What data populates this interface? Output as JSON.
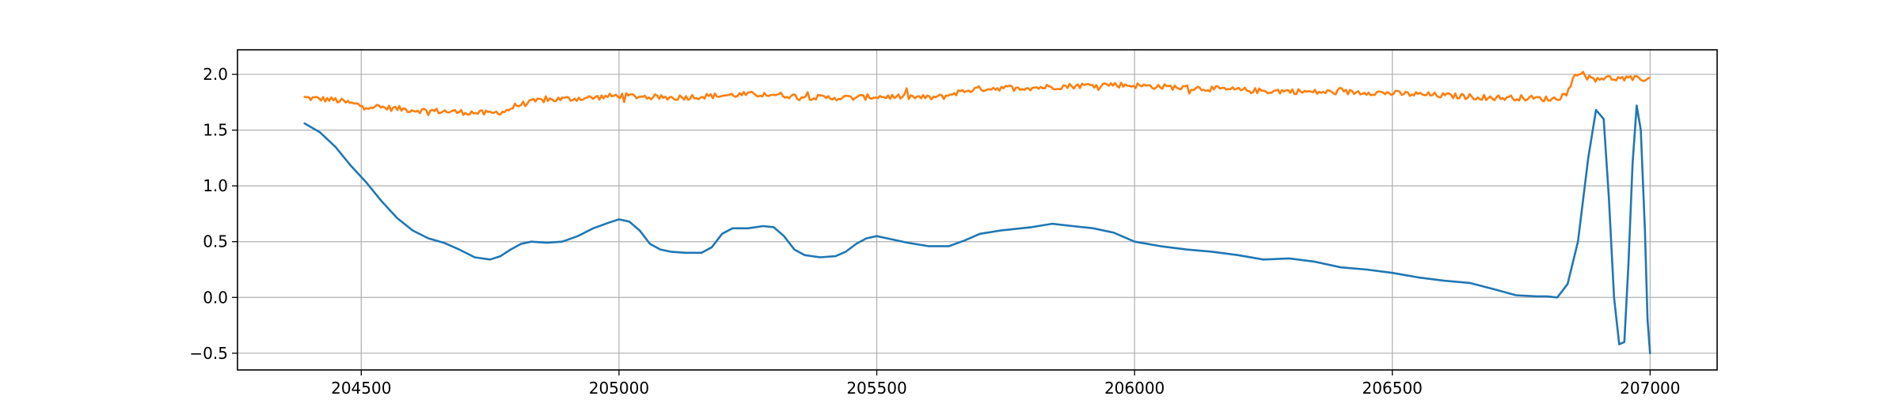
{
  "chart_data": {
    "type": "line",
    "title": "",
    "xlabel": "",
    "ylabel": "",
    "xlim": [
      204260,
      207130
    ],
    "ylim": [
      -0.65,
      2.22
    ],
    "grid": true,
    "legend": "none",
    "x_ticks": [
      204500,
      205000,
      205500,
      206000,
      206500,
      207000
    ],
    "x_tick_labels": [
      "204500",
      "205000",
      "205500",
      "206000",
      "206500",
      "207000"
    ],
    "y_ticks": [
      -0.5,
      0.0,
      0.5,
      1.0,
      1.5,
      2.0
    ],
    "y_tick_labels": [
      "−0.5",
      "0.0",
      "0.5",
      "1.0",
      "1.5",
      "2.0"
    ],
    "series": [
      {
        "color": "#1f77b4",
        "x": [
          204390,
          204420,
          204450,
          204480,
          204510,
          204540,
          204570,
          204600,
          204630,
          204660,
          204690,
          204720,
          204750,
          204770,
          204790,
          204810,
          204830,
          204860,
          204890,
          204920,
          204950,
          204980,
          205000,
          205020,
          205040,
          205060,
          205080,
          205100,
          205130,
          205160,
          205180,
          205200,
          205220,
          205250,
          205280,
          205300,
          205320,
          205340,
          205360,
          205390,
          205420,
          205440,
          205460,
          205480,
          205500,
          205520,
          205560,
          205600,
          205640,
          205670,
          205700,
          205740,
          205780,
          205800,
          205840,
          205880,
          205920,
          205960,
          206000,
          206050,
          206100,
          206150,
          206200,
          206250,
          206300,
          206350,
          206400,
          206450,
          206500,
          206550,
          206600,
          206650,
          206700,
          206740,
          206780,
          206800,
          206820,
          206840,
          206860,
          206880,
          206895,
          206910,
          206920,
          206930,
          206940,
          206950,
          206958,
          206966,
          206974,
          206982,
          206990,
          206995,
          207000
        ],
        "y": [
          1.56,
          1.48,
          1.35,
          1.18,
          1.03,
          0.86,
          0.71,
          0.6,
          0.53,
          0.49,
          0.43,
          0.36,
          0.34,
          0.37,
          0.43,
          0.48,
          0.5,
          0.49,
          0.5,
          0.55,
          0.62,
          0.67,
          0.7,
          0.68,
          0.6,
          0.48,
          0.43,
          0.41,
          0.4,
          0.4,
          0.45,
          0.57,
          0.62,
          0.62,
          0.64,
          0.63,
          0.55,
          0.43,
          0.38,
          0.36,
          0.37,
          0.41,
          0.48,
          0.53,
          0.55,
          0.53,
          0.49,
          0.46,
          0.46,
          0.51,
          0.57,
          0.6,
          0.62,
          0.63,
          0.66,
          0.64,
          0.62,
          0.58,
          0.5,
          0.46,
          0.43,
          0.41,
          0.38,
          0.34,
          0.35,
          0.32,
          0.27,
          0.25,
          0.22,
          0.18,
          0.15,
          0.13,
          0.07,
          0.02,
          0.01,
          0.01,
          0.0,
          0.12,
          0.5,
          1.25,
          1.68,
          1.6,
          0.9,
          0.0,
          -0.42,
          -0.4,
          0.3,
          1.2,
          1.72,
          1.5,
          0.6,
          -0.2,
          -0.5
        ]
      },
      {
        "color": "#ff7f0e",
        "x": [
          204390,
          204450,
          204500,
          204550,
          204600,
          204650,
          204700,
          204750,
          204780,
          204800,
          204830,
          204850,
          204900,
          204950,
          205000,
          205050,
          205100,
          205150,
          205200,
          205250,
          205300,
          205350,
          205400,
          205450,
          205500,
          205550,
          205600,
          205630,
          205650,
          205680,
          205700,
          205750,
          205800,
          205850,
          205900,
          205950,
          206000,
          206050,
          206100,
          206150,
          206200,
          206250,
          206300,
          206350,
          206400,
          206450,
          206500,
          206550,
          206600,
          206650,
          206700,
          206750,
          206800,
          206820,
          206840,
          206850,
          206860,
          206870,
          206880,
          206900,
          206950,
          207000
        ],
        "y": [
          1.79,
          1.77,
          1.72,
          1.7,
          1.68,
          1.67,
          1.66,
          1.65,
          1.67,
          1.72,
          1.75,
          1.77,
          1.78,
          1.79,
          1.81,
          1.8,
          1.79,
          1.8,
          1.81,
          1.82,
          1.82,
          1.8,
          1.79,
          1.79,
          1.8,
          1.8,
          1.79,
          1.8,
          1.83,
          1.86,
          1.87,
          1.88,
          1.88,
          1.89,
          1.9,
          1.91,
          1.9,
          1.89,
          1.88,
          1.87,
          1.86,
          1.85,
          1.85,
          1.84,
          1.84,
          1.84,
          1.83,
          1.82,
          1.81,
          1.8,
          1.79,
          1.79,
          1.78,
          1.78,
          1.84,
          1.95,
          2.03,
          2.0,
          1.97,
          1.97,
          1.96,
          1.96
        ],
        "noise": 0.025
      }
    ]
  }
}
